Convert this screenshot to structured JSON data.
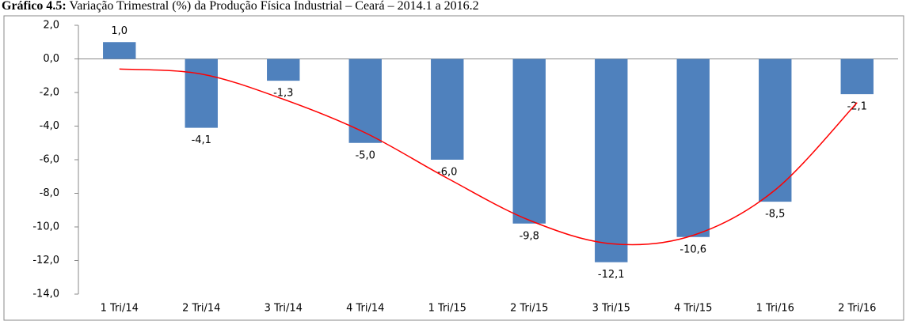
{
  "chart_data": {
    "type": "bar",
    "title_label": "Gráfico 4.5:",
    "title": "Variação Trimestral (%) da Produção Física Industrial – Ceará – 2014.1 a 2016.2",
    "categories": [
      "1 Tri/14",
      "2 Tri/14",
      "3 Tri/14",
      "4 Tri/14",
      "1 Tri/15",
      "2 Tri/15",
      "3 Tri/15",
      "4 Tri/15",
      "1 Tri/16",
      "2 Tri/16"
    ],
    "values": [
      1.0,
      -4.1,
      -1.3,
      -5.0,
      -6.0,
      -9.8,
      -12.1,
      -10.6,
      -8.5,
      -2.1
    ],
    "value_labels": [
      "1,0",
      "-4,1",
      "-1,3",
      "-5,0",
      "-6,0",
      "-9,8",
      "-12,1",
      "-10,6",
      "-8,5",
      "-2,1"
    ],
    "color": "#4f81bd",
    "trendline": {
      "color": "#ff0000",
      "values": [
        -0.6,
        -0.9,
        -2.4,
        -4.4,
        -7.1,
        -9.6,
        -11.0,
        -10.5,
        -7.8,
        -2.6
      ]
    },
    "ylim": [
      -14,
      2
    ],
    "yticks": [
      {
        "value": 2,
        "label": "2,0"
      },
      {
        "value": 0,
        "label": "0,0"
      },
      {
        "value": -2,
        "label": "-2,0"
      },
      {
        "value": -4,
        "label": "-4,0"
      },
      {
        "value": -6,
        "label": "-6,0"
      },
      {
        "value": -8,
        "label": "-8,0"
      },
      {
        "value": -10,
        "label": "-10,0"
      },
      {
        "value": -12,
        "label": "-12,0"
      },
      {
        "value": -14,
        "label": "-14,0"
      }
    ]
  }
}
